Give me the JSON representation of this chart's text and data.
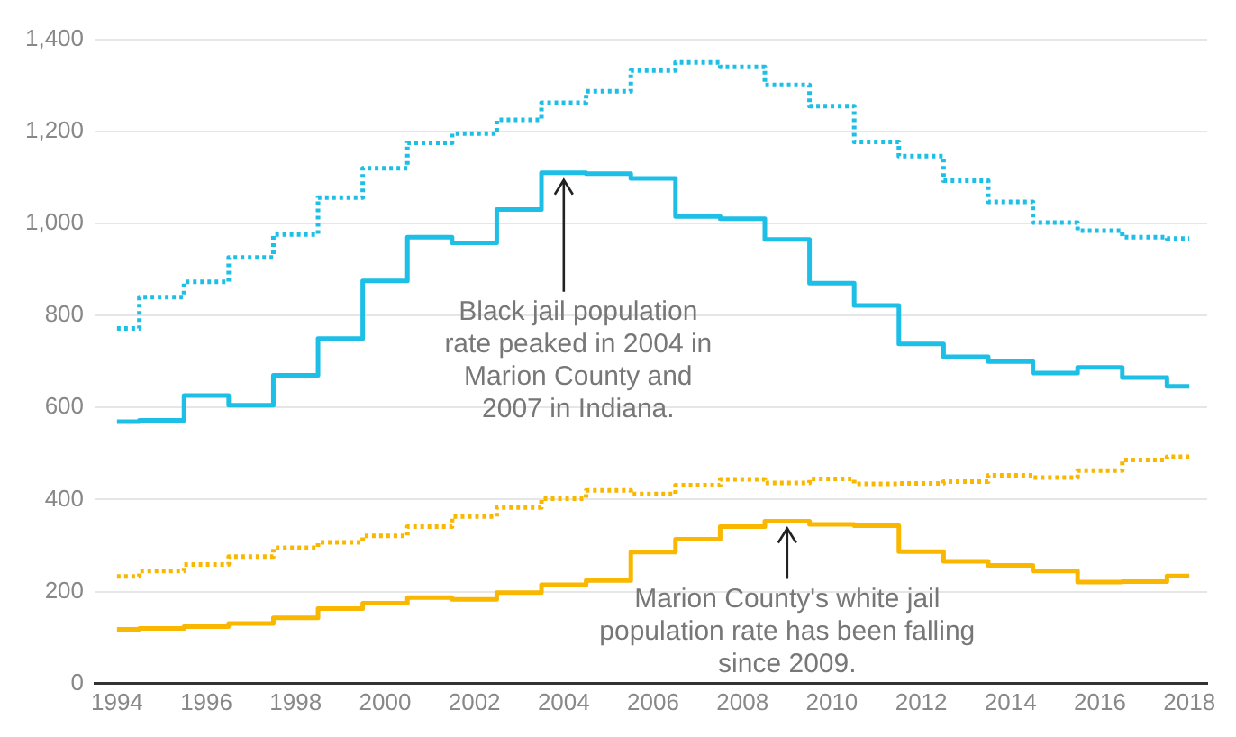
{
  "chart_data": {
    "type": "step",
    "x": [
      1994,
      1995,
      1996,
      1997,
      1998,
      1999,
      2000,
      2001,
      2002,
      2003,
      2004,
      2005,
      2006,
      2007,
      2008,
      2009,
      2010,
      2011,
      2012,
      2013,
      2014,
      2015,
      2016,
      2017,
      2018
    ],
    "series": [
      {
        "color": "#f9b700",
        "line_style": "dotted",
        "values": [
          233,
          245,
          259,
          276,
          295,
          307,
          321,
          341,
          363,
          383,
          402,
          420,
          412,
          431,
          444,
          436,
          445,
          434,
          435,
          439,
          453,
          448,
          463,
          486,
          493
        ]
      },
      {
        "color": "#f9b700",
        "line_style": "solid",
        "values": [
          118,
          120,
          124,
          131,
          143,
          163,
          175,
          187,
          183,
          198,
          215,
          224,
          286,
          314,
          341,
          353,
          346,
          343,
          287,
          266,
          257,
          245,
          221,
          222,
          234
        ]
      },
      {
        "color": "#1ebfe6",
        "line_style": "dotted",
        "values": [
          772,
          840,
          873,
          926,
          976,
          1056,
          1120,
          1175,
          1195,
          1225,
          1262,
          1287,
          1332,
          1350,
          1340,
          1301,
          1255,
          1177,
          1146,
          1093,
          1047,
          1002,
          984,
          970,
          967
        ]
      },
      {
        "color": "#1ebfe6",
        "line_style": "solid",
        "values": [
          569,
          572,
          626,
          605,
          670,
          750,
          875,
          970,
          958,
          1030,
          1110,
          1108,
          1098,
          1015,
          1010,
          965,
          870,
          822,
          738,
          710,
          700,
          675,
          687,
          665,
          646
        ]
      }
    ],
    "xlim": [
      1993.5,
      2018.4
    ],
    "xticks": [
      1994,
      1996,
      1998,
      2000,
      2002,
      2004,
      2006,
      2008,
      2010,
      2012,
      2014,
      2016,
      2018
    ],
    "ylim": [
      0,
      1400
    ],
    "yticks": [
      {
        "value": 0,
        "label": "0"
      },
      {
        "value": 200,
        "label": "200"
      },
      {
        "value": 400,
        "label": "400"
      },
      {
        "value": 600,
        "label": "600"
      },
      {
        "value": 800,
        "label": "800"
      },
      {
        "value": 1000,
        "label": "1,000"
      },
      {
        "value": 1200,
        "label": "1,200"
      },
      {
        "value": 1400,
        "label": "1,400"
      }
    ],
    "grid": "y",
    "legend": false,
    "annotations": [
      {
        "text": "Black jail population rate peaked in 2004 in Marion County and 2007 in Indiana.",
        "x": 2004,
        "y": 1110
      },
      {
        "text": "Marion County's white jail population rate has been falling since 2009.",
        "x": 2009,
        "y": 353
      }
    ]
  }
}
